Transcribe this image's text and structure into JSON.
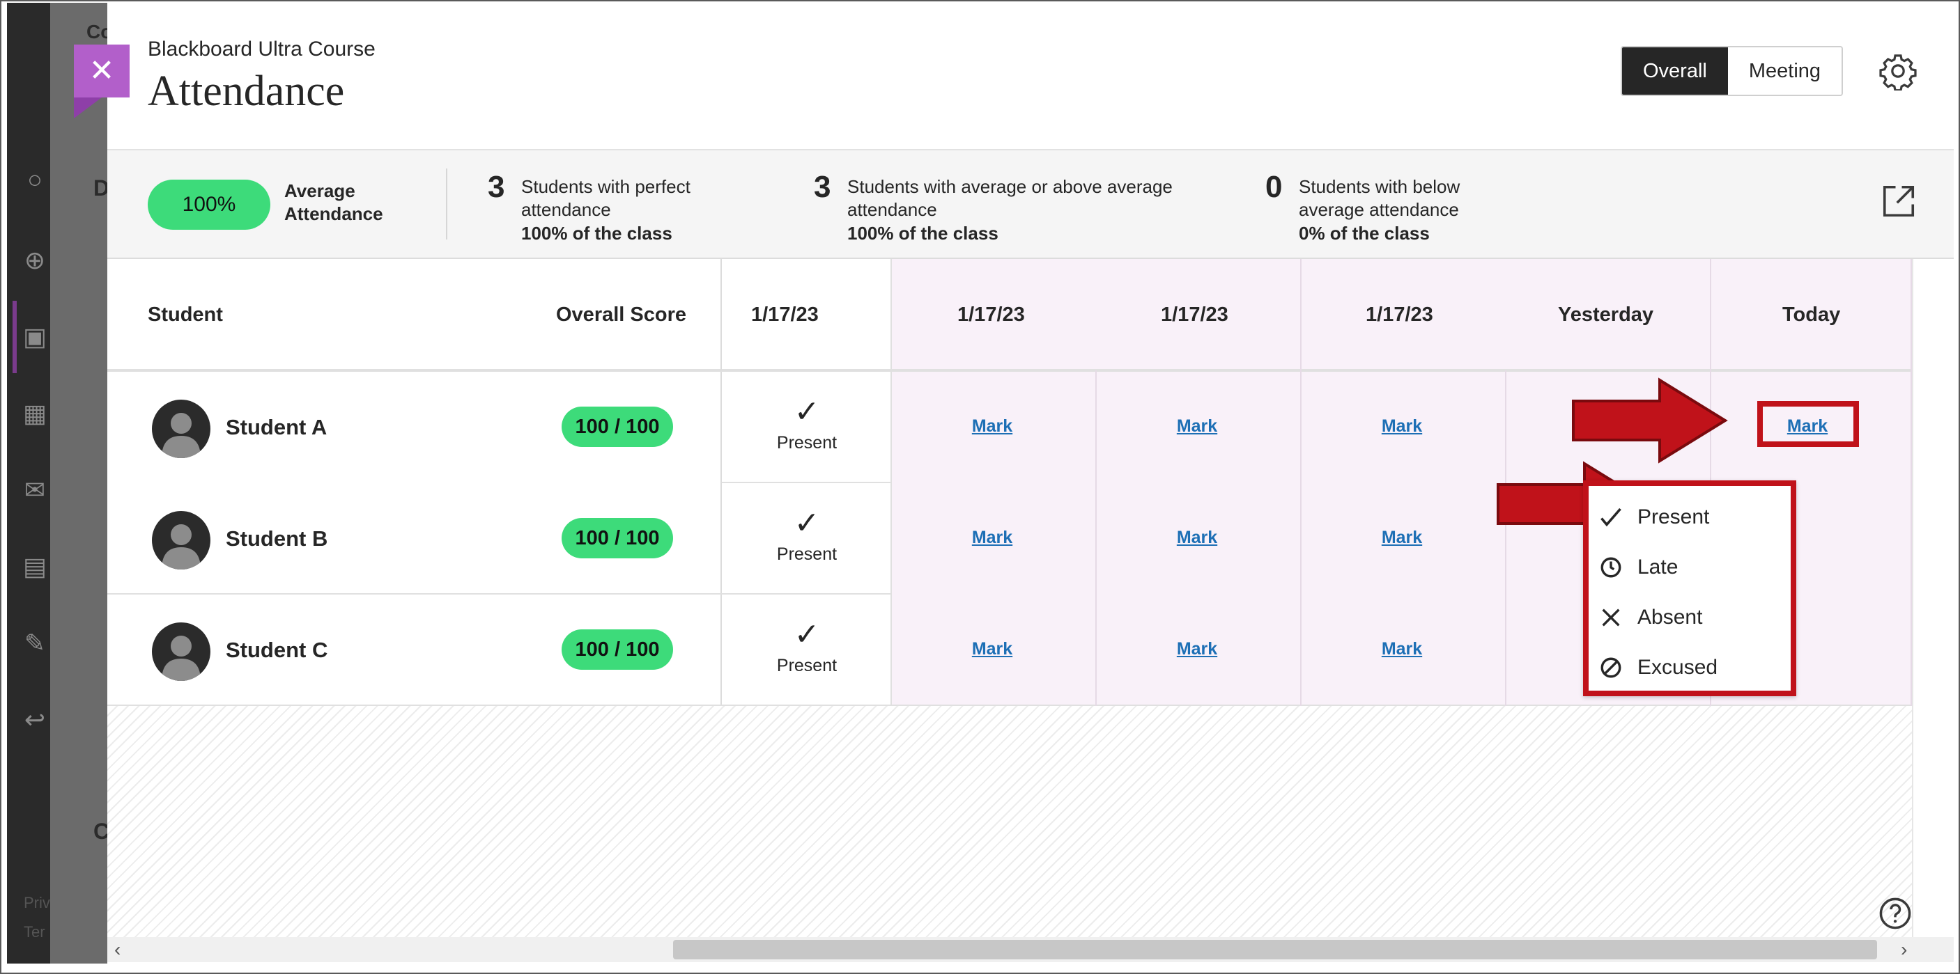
{
  "panel": {
    "subtitle": "Blackboard Ultra Course",
    "title": "Attendance",
    "views": [
      {
        "label": "Overall",
        "active": true
      },
      {
        "label": "Meeting",
        "active": false
      }
    ]
  },
  "stats": {
    "average_pill": "100%",
    "average_label_line1": "Average",
    "average_label_line2": "Attendance",
    "items": [
      {
        "count": "3",
        "text": "Students with perfect attendance",
        "pct": "100% of the class"
      },
      {
        "count": "3",
        "text": "Students with average or above average attendance",
        "pct": "100% of the class"
      },
      {
        "count": "0",
        "text": "Students with below average attendance",
        "pct": "0% of the class"
      }
    ]
  },
  "table": {
    "headers": {
      "student": "Student",
      "overall": "Overall Score",
      "dates": [
        "1/17/23",
        "1/17/23",
        "1/17/23",
        "1/17/23",
        "Yesterday",
        "Today"
      ]
    },
    "mark_label": "Mark",
    "present_label": "Present",
    "rows": [
      {
        "name": "Student A",
        "score": "100 / 100"
      },
      {
        "name": "Student B",
        "score": "100 / 100"
      },
      {
        "name": "Student C",
        "score": "100 / 100"
      }
    ]
  },
  "dropdown": {
    "options": [
      {
        "label": "Present",
        "icon": "check-icon"
      },
      {
        "label": "Late",
        "icon": "clock-icon"
      },
      {
        "label": "Absent",
        "icon": "x-icon"
      },
      {
        "label": "Excused",
        "icon": "excused-icon"
      }
    ]
  },
  "background": {
    "frag1": "Co",
    "frag2": "D",
    "frag3": "C",
    "frag4": "Priv",
    "frag5": "Ter"
  },
  "colors": {
    "accent_purple": "#b25fca",
    "success_green": "#3ddb7a",
    "link_blue": "#1d6fb5",
    "annotation_red": "#c0121a",
    "meeting_column_bg": "#f9f1f9"
  }
}
